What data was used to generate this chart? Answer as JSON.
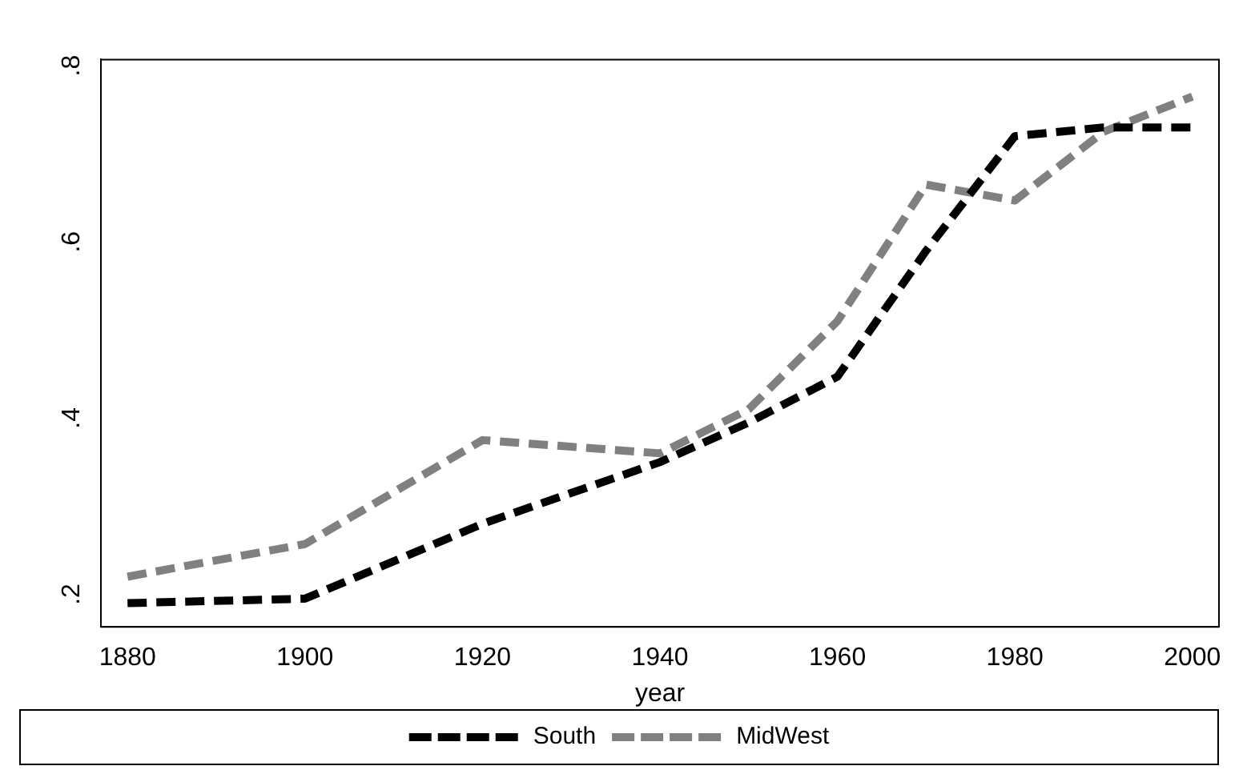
{
  "chart_data": {
    "type": "line",
    "xlabel": "year",
    "x": [
      1880,
      1900,
      1920,
      1940,
      1950,
      1960,
      1970,
      1980,
      1990,
      2000
    ],
    "series": [
      {
        "name": "South",
        "color": "#000000",
        "values": [
          0.19,
          0.195,
          0.28,
          0.35,
          0.395,
          0.447,
          0.59,
          0.72,
          0.73,
          0.73
        ]
      },
      {
        "name": "MidWest",
        "color": "#808080",
        "values": [
          0.22,
          0.257,
          0.375,
          0.36,
          0.41,
          0.51,
          0.665,
          0.647,
          0.725,
          0.765
        ]
      }
    ],
    "xlim": [
      1877,
      2003
    ],
    "xticks": [
      1880,
      1900,
      1920,
      1940,
      1960,
      1980,
      2000
    ],
    "ylim": [
      0.163,
      0.807
    ],
    "yticks": [
      {
        "value": 0.2,
        "label": ".2"
      },
      {
        "value": 0.4,
        "label": ".4"
      },
      {
        "value": 0.6,
        "label": ".6"
      },
      {
        "value": 0.8,
        "label": ".8"
      }
    ],
    "grid": false,
    "legend": "bottom",
    "marker": "none",
    "line_style": "dashed"
  }
}
